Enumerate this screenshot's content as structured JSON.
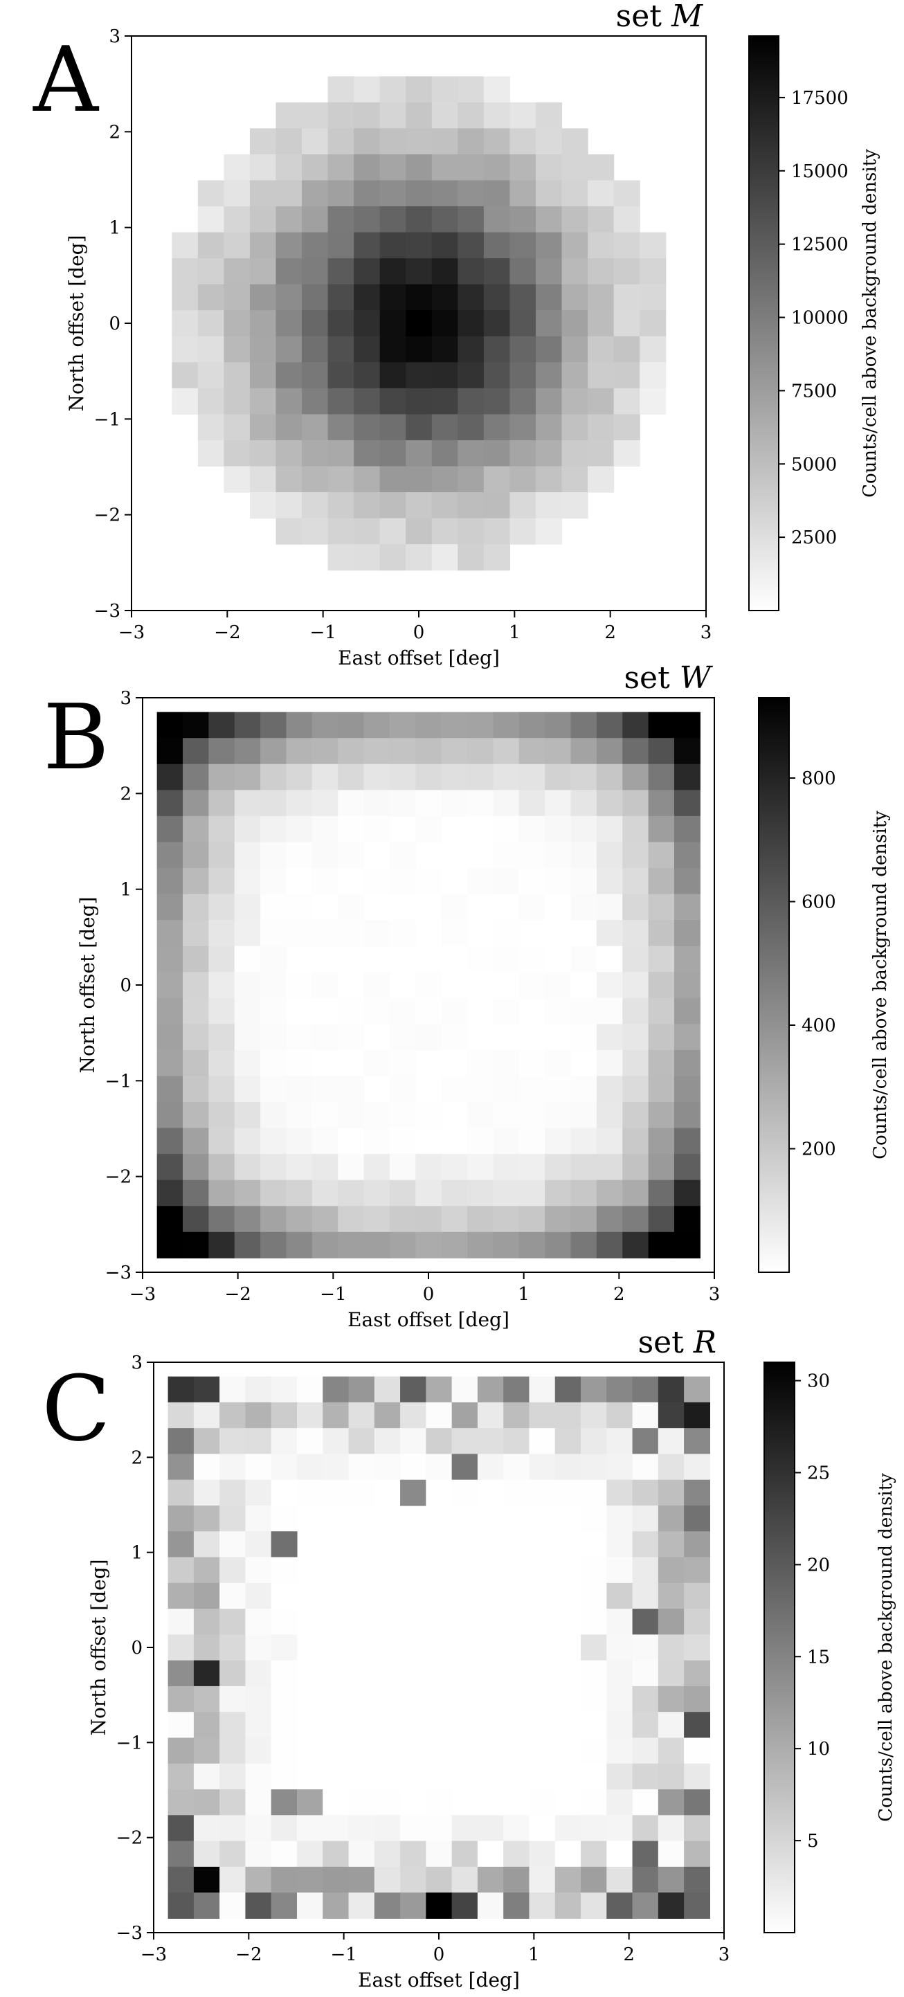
{
  "chart_data": [
    {
      "type": "heatmap",
      "panel_letter": "A",
      "title_prefix": "set",
      "title_var": "M",
      "xlabel": "East offset [deg]",
      "ylabel": "North offset [deg]",
      "colorbar_label": "Counts/cell above background density",
      "xlim": [
        -3,
        3
      ],
      "ylim": [
        -3,
        3
      ],
      "xticks": [
        "−3",
        "−2",
        "−1",
        "0",
        "1",
        "2",
        "3"
      ],
      "yticks": [
        "−3",
        "−2",
        "−1",
        "0",
        "1",
        "2",
        "3"
      ],
      "colorbar_range": [
        0,
        19600
      ],
      "colorbar_ticks": [
        {
          "value": 2500,
          "label": "2500"
        },
        {
          "value": 5000,
          "label": "5000"
        },
        {
          "value": 7500,
          "label": "7500"
        },
        {
          "value": 10000,
          "label": "10000"
        },
        {
          "value": 12500,
          "label": "12500"
        },
        {
          "value": 15000,
          "label": "15000"
        },
        {
          "value": 17500,
          "label": "17500"
        }
      ],
      "grid": false,
      "pattern": "central_blob",
      "peak_value": 19500,
      "cells": 21
    },
    {
      "type": "heatmap",
      "panel_letter": "B",
      "title_prefix": "set",
      "title_var": "W",
      "xlabel": "East offset [deg]",
      "ylabel": "North offset [deg]",
      "colorbar_label": "Counts/cell above background density",
      "xlim": [
        -3,
        3
      ],
      "ylim": [
        -3,
        3
      ],
      "xticks": [
        "−3",
        "−2",
        "−1",
        "0",
        "1",
        "2",
        "3"
      ],
      "yticks": [
        "−3",
        "−2",
        "−1",
        "0",
        "1",
        "2",
        "3"
      ],
      "colorbar_range": [
        0,
        930
      ],
      "colorbar_ticks": [
        {
          "value": 200,
          "label": "200"
        },
        {
          "value": 400,
          "label": "400"
        },
        {
          "value": 600,
          "label": "600"
        },
        {
          "value": 800,
          "label": "800"
        }
      ],
      "grid": false,
      "pattern": "edge_ring",
      "peak_value": 920,
      "cells": 21
    },
    {
      "type": "heatmap",
      "panel_letter": "C",
      "title_prefix": "set",
      "title_var": "R",
      "xlabel": "East offset [deg]",
      "ylabel": "North offset [deg]",
      "colorbar_label": "Counts/cell above background density",
      "xlim": [
        -3,
        3
      ],
      "ylim": [
        -3,
        3
      ],
      "xticks": [
        "−3",
        "−2",
        "−1",
        "0",
        "1",
        "2",
        "3"
      ],
      "yticks": [
        "−3",
        "−2",
        "−1",
        "0",
        "1",
        "2",
        "3"
      ],
      "colorbar_range": [
        0,
        31
      ],
      "colorbar_ticks": [
        {
          "value": 5,
          "label": "5"
        },
        {
          "value": 10,
          "label": "10"
        },
        {
          "value": 15,
          "label": "15"
        },
        {
          "value": 20,
          "label": "20"
        },
        {
          "value": 25,
          "label": "25"
        },
        {
          "value": 30,
          "label": "30"
        }
      ],
      "grid": false,
      "pattern": "noisy_edge_ring",
      "peak_value": 31,
      "cells": 21
    }
  ]
}
